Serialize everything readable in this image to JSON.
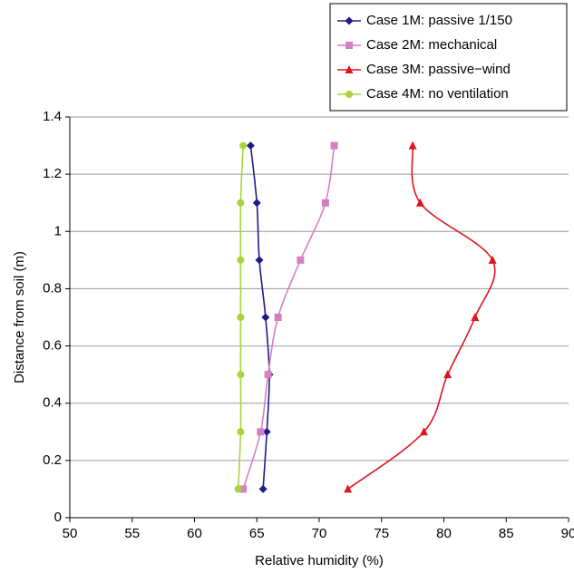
{
  "chart_data": {
    "type": "line",
    "x_label": "Relative humidity (%)",
    "y_label": "Distance from soil (m)",
    "xlim": [
      50,
      90
    ],
    "xticks": [
      50,
      55,
      60,
      65,
      70,
      75,
      80,
      85,
      90
    ],
    "ylim": [
      0,
      1.4
    ],
    "yticks": [
      0,
      0.2,
      0.4,
      0.6,
      0.8,
      1,
      1.2,
      1.4
    ],
    "grid": true,
    "legend": "upper right",
    "series": [
      {
        "name": "Case 1M: passive 1/150",
        "color": "#1c1c8a",
        "marker": "diamond",
        "x": [
          65.5,
          65.8,
          66.0,
          65.7,
          65.2,
          65.0,
          64.5
        ],
        "y": [
          0.1,
          0.3,
          0.5,
          0.7,
          0.9,
          1.1,
          1.3
        ]
      },
      {
        "name": "Case 2M: mechanical",
        "color": "#d47fc2",
        "marker": "square",
        "x": [
          63.9,
          65.3,
          65.9,
          66.7,
          68.5,
          70.5,
          71.2
        ],
        "y": [
          0.1,
          0.3,
          0.5,
          0.7,
          0.9,
          1.1,
          1.3
        ]
      },
      {
        "name": "Case 3M: passive−wind",
        "color": "#e0141e",
        "marker": "triangle",
        "x": [
          72.3,
          78.4,
          80.3,
          82.5,
          83.9,
          78.1,
          77.5
        ],
        "y": [
          0.1,
          0.3,
          0.5,
          0.7,
          0.9,
          1.1,
          1.3
        ]
      },
      {
        "name": "Case 4M: no ventilation",
        "color": "#a8d43a",
        "marker": "circle",
        "x": [
          63.5,
          63.7,
          63.7,
          63.7,
          63.7,
          63.7,
          63.9
        ],
        "y": [
          0.1,
          0.3,
          0.5,
          0.7,
          0.9,
          1.1,
          1.3
        ]
      }
    ]
  }
}
